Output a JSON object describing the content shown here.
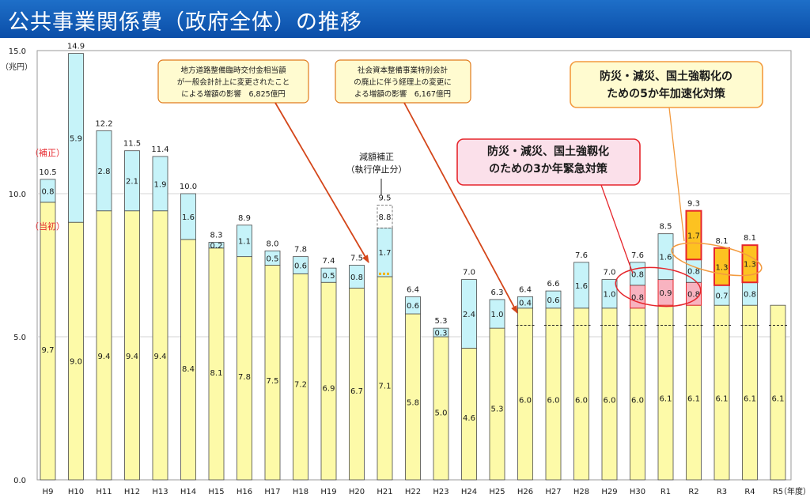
{
  "page": {
    "title": "公共事業関係費（政府全体）の推移"
  },
  "chart_data": {
    "type": "bar",
    "stacked": true,
    "ylabel": "（兆円）",
    "xlabel": "（年度）",
    "ylim": [
      0,
      15
    ],
    "yticks": [
      "0.0",
      "5.0",
      "10.0",
      "15.0"
    ],
    "grid": true,
    "categories": [
      "H9",
      "H10",
      "H11",
      "H12",
      "H13",
      "H14",
      "H15",
      "H16",
      "H17",
      "H18",
      "H19",
      "H20",
      "H21",
      "H22",
      "H23",
      "H24",
      "H25",
      "H26",
      "H27",
      "H28",
      "H29",
      "H30",
      "R1",
      "R2",
      "R3",
      "R4",
      "R5"
    ],
    "totals": [
      "10.5",
      "14.9",
      "12.2",
      "11.5",
      "11.4",
      "10.0",
      "8.3",
      "8.9",
      "8.0",
      "7.8",
      "7.4",
      "7.5",
      "9.5",
      "6.4",
      "5.3",
      "7.0",
      "6.3",
      "6.4",
      "6.6",
      "7.6",
      "7.0",
      "7.6",
      "8.5",
      "9.3",
      "8.1",
      "8.1",
      ""
    ],
    "initial": [
      9.7,
      9.0,
      9.4,
      9.4,
      9.4,
      8.4,
      8.1,
      7.8,
      7.5,
      7.2,
      6.9,
      6.7,
      7.1,
      5.8,
      5.0,
      4.6,
      5.3,
      6.0,
      6.0,
      6.0,
      6.0,
      6.0,
      6.1,
      6.1,
      6.1,
      6.1,
      6.1
    ],
    "supplementary": [
      0.8,
      5.9,
      2.8,
      2.1,
      1.9,
      1.6,
      0.2,
      1.1,
      0.5,
      0.6,
      0.5,
      0.8,
      1.7,
      0.6,
      0.3,
      2.4,
      1.0,
      0.4,
      0.6,
      1.6,
      1.0,
      0.8,
      1.6,
      0.8,
      0.7,
      0.8,
      null
    ],
    "emergency3": [
      null,
      null,
      null,
      null,
      null,
      null,
      null,
      null,
      null,
      null,
      null,
      null,
      null,
      null,
      null,
      null,
      null,
      null,
      null,
      null,
      null,
      0.8,
      0.9,
      0.8,
      null,
      null,
      null
    ],
    "acceleration5": [
      null,
      null,
      null,
      null,
      null,
      null,
      null,
      null,
      null,
      null,
      null,
      null,
      null,
      null,
      null,
      null,
      null,
      null,
      null,
      null,
      null,
      null,
      null,
      1.7,
      1.3,
      1.3,
      null
    ],
    "h21_reduction": {
      "category": "H21",
      "value": 0.8,
      "label": "8.8",
      "total_label": "9.5"
    },
    "baseline_value": 5.4,
    "side_labels": {
      "supplementary": "（補正）",
      "initial": "（当初）"
    },
    "annotations": {
      "reduction": "減額補正\n（執行停止分）",
      "road": "地方道路整備臨時交付金相当額\nが一般会計計上に変更されたこと\nによる増額の影響　6,825億円",
      "social": "社会資本整備事業特別会計\nの廃止に伴う経理上の変更に\nよる増額の影響　6,167億円",
      "emergency3": "防災・減災、国土強靱化\nのための3か年緊急対策",
      "acceleration5": "防災・減災、国土強靱化の\nための5か年加速化対策"
    },
    "colors": {
      "initial": "#fdfaa8",
      "supplementary": "#c6f3f9",
      "emergency3": "#f8b3c0",
      "acceleration5": "#fdc221",
      "acceleration5_border": "#e6262c",
      "arrow": "#d4461a",
      "orange": "#f39a3e",
      "red_ellipse": "#e6262c"
    }
  }
}
